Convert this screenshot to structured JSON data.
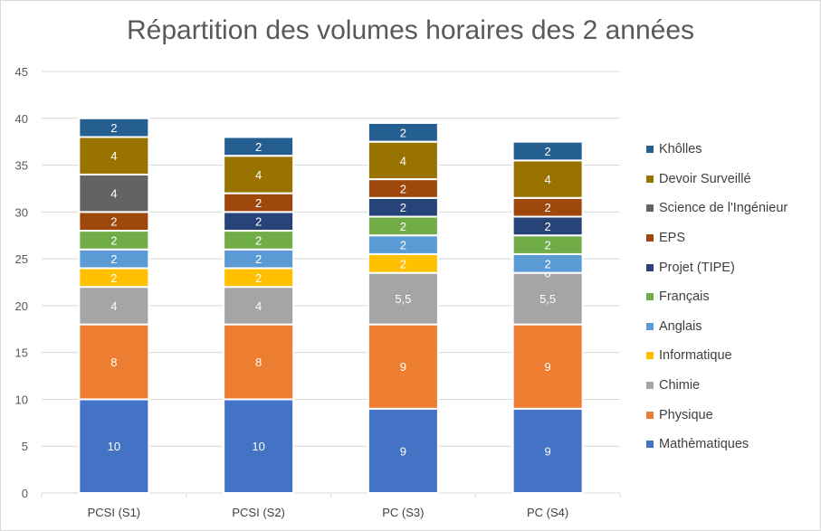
{
  "chart_data": {
    "type": "bar",
    "stacked": true,
    "title": "Répartition des volumes horaires des 2 années",
    "xlabel": "",
    "ylabel": "",
    "ylim": [
      0,
      45
    ],
    "ytick_step": 5,
    "y_ticks": [
      "0",
      "5",
      "10",
      "15",
      "20",
      "25",
      "30",
      "35",
      "40",
      "45"
    ],
    "grid": true,
    "legend_position": "right",
    "categories": [
      "PCSI (S1)",
      "PCSI (S2)",
      "PC (S3)",
      "PC (S4)"
    ],
    "series": [
      {
        "name": "Mathèmatiques",
        "color": "#4472c4",
        "values": [
          10,
          10,
          9,
          9
        ],
        "labels": [
          "10",
          "10",
          "9",
          "9"
        ]
      },
      {
        "name": "Physique",
        "color": "#ed7d31",
        "values": [
          8,
          8,
          9,
          9
        ],
        "labels": [
          "8",
          "8",
          "9",
          "9"
        ]
      },
      {
        "name": "Chimie",
        "color": "#a5a5a5",
        "values": [
          4,
          4,
          5.5,
          5.5
        ],
        "labels": [
          "4",
          "4",
          "5,5",
          "5,5"
        ]
      },
      {
        "name": "Informatique",
        "color": "#ffc000",
        "values": [
          2,
          2,
          2,
          0
        ],
        "labels": [
          "2",
          "2",
          "2",
          "0"
        ]
      },
      {
        "name": "Anglais",
        "color": "#5b9bd5",
        "values": [
          2,
          2,
          2,
          2
        ],
        "labels": [
          "2",
          "2",
          "2",
          "2"
        ]
      },
      {
        "name": "Français",
        "color": "#70ad47",
        "values": [
          2,
          2,
          2,
          2
        ],
        "labels": [
          "2",
          "2",
          "2",
          "2"
        ]
      },
      {
        "name": "Projet (TIPE)",
        "color": "#264478",
        "values": [
          0,
          2,
          2,
          2
        ],
        "labels": [
          null,
          "2",
          "2",
          "2"
        ]
      },
      {
        "name": "EPS",
        "color": "#9e480e",
        "values": [
          2,
          2,
          2,
          2
        ],
        "labels": [
          "2",
          "2",
          "2",
          "2"
        ]
      },
      {
        "name": "Science de l'Ingénieur",
        "color": "#636363",
        "values": [
          4,
          0,
          0,
          0
        ],
        "labels": [
          "4",
          null,
          null,
          null
        ]
      },
      {
        "name": "Devoir Surveillé",
        "color": "#997300",
        "values": [
          4,
          4,
          4,
          4
        ],
        "labels": [
          "4",
          "4",
          "4",
          "4"
        ]
      },
      {
        "name": "Khôlles",
        "color": "#255e91",
        "values": [
          2,
          2,
          2,
          2
        ],
        "labels": [
          "2",
          "2",
          "2",
          "2"
        ]
      }
    ]
  }
}
